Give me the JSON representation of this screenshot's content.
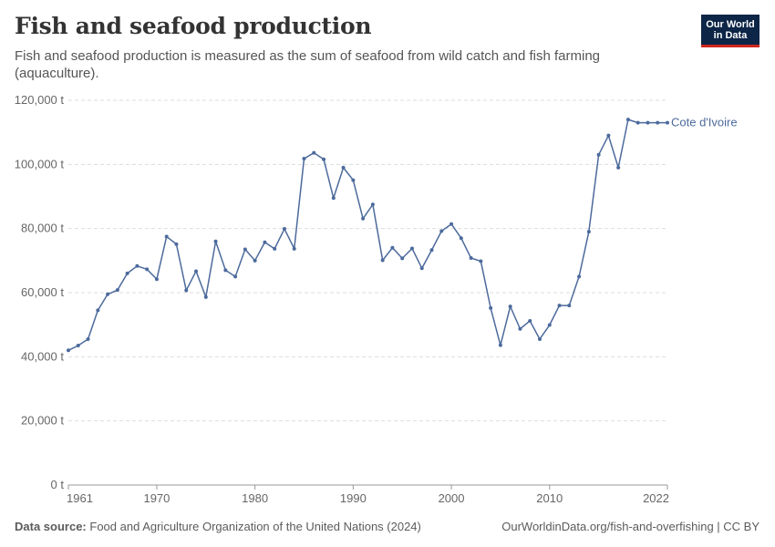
{
  "header": {
    "title": "Fish and seafood production",
    "subtitle": "Fish and seafood production is measured as the sum of seafood from wild catch and fish farming (aquaculture).",
    "logo_line1": "Our World",
    "logo_line2": "in Data"
  },
  "footer": {
    "source_label": "Data source:",
    "source_text": "Food and Agriculture Organization of the United Nations (2024)",
    "link_text": "OurWorldinData.org/fish-and-overfishing | CC BY"
  },
  "colors": {
    "series": "#4c6a9c",
    "grid": "#dddddd",
    "logo_bg": "#0d2546",
    "logo_accent": "#ce261e"
  },
  "chart_data": {
    "type": "line",
    "title": "Fish and seafood production",
    "xlim": [
      1961,
      2022
    ],
    "ylim": [
      0,
      120000
    ],
    "x_ticks": [
      1961,
      1970,
      1980,
      1990,
      2000,
      2010,
      2022
    ],
    "y_ticks": [
      0,
      20000,
      40000,
      60000,
      80000,
      100000,
      120000
    ],
    "y_tick_labels": [
      "0 t",
      "20,000 t",
      "40,000 t",
      "60,000 t",
      "80,000 t",
      "100,000 t",
      "120,000 t"
    ],
    "grid": "horizontal dashed",
    "series": [
      {
        "name": "Cote d'Ivoire",
        "x": [
          1961,
          1962,
          1963,
          1964,
          1965,
          1966,
          1967,
          1968,
          1969,
          1970,
          1971,
          1972,
          1973,
          1974,
          1975,
          1976,
          1977,
          1978,
          1979,
          1980,
          1981,
          1982,
          1983,
          1984,
          1985,
          1986,
          1987,
          1988,
          1989,
          1990,
          1991,
          1992,
          1993,
          1994,
          1995,
          1996,
          1997,
          1998,
          1999,
          2000,
          2001,
          2002,
          2003,
          2004,
          2005,
          2006,
          2007,
          2008,
          2009,
          2010,
          2011,
          2012,
          2013,
          2014,
          2015,
          2016,
          2017,
          2018,
          2019,
          2020,
          2021,
          2022
        ],
        "values": [
          42000,
          43500,
          45500,
          54500,
          59500,
          60800,
          66000,
          68300,
          67300,
          64200,
          77500,
          75100,
          60700,
          66700,
          58600,
          76000,
          67000,
          65000,
          73500,
          70000,
          75700,
          73700,
          79900,
          73700,
          101800,
          103600,
          101600,
          89500,
          99000,
          95100,
          83100,
          87500,
          70100,
          74000,
          70700,
          73800,
          67600,
          73300,
          79200,
          81400,
          77000,
          70800,
          69800,
          55200,
          43600,
          55700,
          48700,
          51200,
          45500,
          49900,
          56000,
          56000,
          65000,
          79000,
          103000,
          109000,
          99000,
          114000,
          113000,
          113000,
          113000,
          113000
        ]
      }
    ]
  }
}
